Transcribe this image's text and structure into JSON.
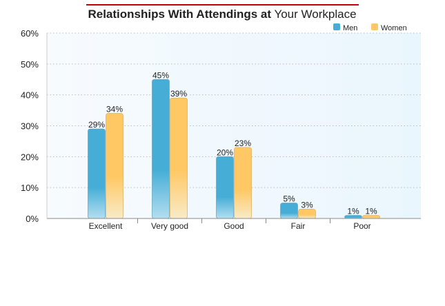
{
  "chart_data": {
    "type": "bar",
    "title_bold": "Relationships With Attendings at",
    "title_regular": "Your Workplace",
    "categories": [
      "Excellent",
      "Very good",
      "Good",
      "Fair",
      "Poor"
    ],
    "series": [
      {
        "name": "Men",
        "values": [
          29,
          45,
          20,
          5,
          1
        ],
        "labels": [
          "29%",
          "45%",
          "20%",
          "5%",
          "1%"
        ]
      },
      {
        "name": "Women",
        "values": [
          34,
          39,
          23,
          3,
          1
        ],
        "labels": [
          "34%",
          "39%",
          "23%",
          "3%",
          "1%"
        ]
      }
    ],
    "colors": {
      "Men": "#45add6",
      "Women": "#ffc864",
      "title_rule": "#c00000"
    },
    "ylim": [
      0,
      60
    ],
    "yticks": [
      "0%",
      "10%",
      "20%",
      "30%",
      "40%",
      "50%",
      "60%"
    ],
    "ytick_values": [
      0,
      10,
      20,
      30,
      40,
      50,
      60
    ],
    "xlabel": "",
    "ylabel": "",
    "grid": true,
    "legend": "top-right"
  }
}
